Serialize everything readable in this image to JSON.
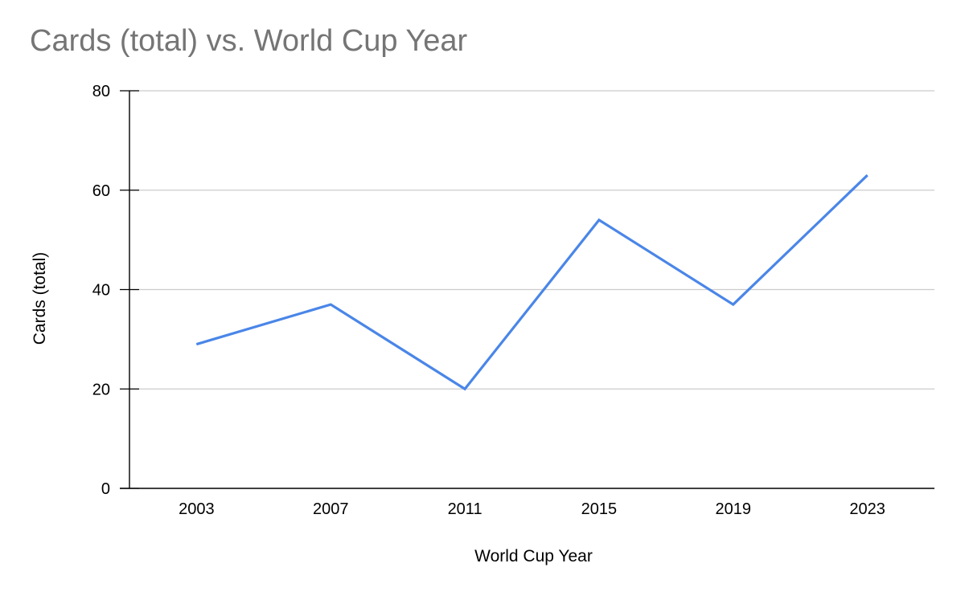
{
  "title": "Cards (total) vs. World Cup Year",
  "chart_data": {
    "type": "line",
    "title": "Cards (total) vs. World Cup Year",
    "xlabel": "World Cup Year",
    "ylabel": "Cards (total)",
    "categories": [
      "2003",
      "2007",
      "2011",
      "2015",
      "2019",
      "2023"
    ],
    "series": [
      {
        "values": [
          29,
          37,
          20,
          54,
          37,
          63
        ]
      }
    ],
    "ylim": [
      0,
      80
    ],
    "yticks": [
      "0",
      "20",
      "40",
      "60",
      "80"
    ],
    "grid": true,
    "legend": "none",
    "colors": {
      "line": "#4a86e8",
      "grid": "#cccccc",
      "axis": "#000000",
      "title": "#757575"
    }
  }
}
